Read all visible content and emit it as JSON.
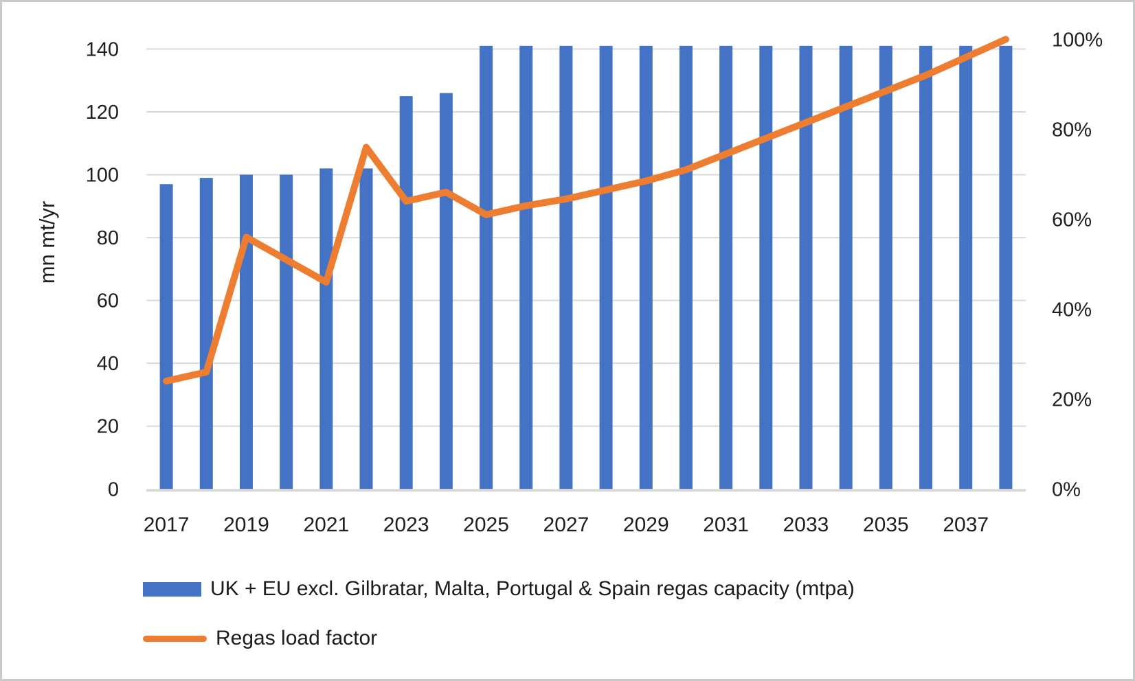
{
  "chart_data": {
    "type": "bar",
    "subtype": "bar+line dual-axis",
    "categories": [
      2017,
      2018,
      2019,
      2020,
      2021,
      2022,
      2023,
      2024,
      2025,
      2026,
      2027,
      2028,
      2029,
      2030,
      2031,
      2032,
      2033,
      2034,
      2035,
      2036,
      2037,
      2038
    ],
    "series": [
      {
        "name": "UK + EU excl. Gilbratar, Malta, Portugal & Spain regas capacity (mtpa)",
        "type": "bar",
        "axis": "left",
        "color": "#4472C4",
        "values": [
          97,
          99,
          100,
          100,
          102,
          102,
          125,
          126,
          141,
          141,
          141,
          141,
          141,
          141,
          141,
          141,
          141,
          141,
          141,
          141,
          141,
          141
        ]
      },
      {
        "name": "Regas load factor",
        "type": "line",
        "axis": "right",
        "color": "#ED7D31",
        "values_pct": [
          24,
          26,
          56,
          51,
          46,
          76,
          64,
          66,
          61,
          63,
          64.5,
          66.5,
          68.5,
          71,
          74.5,
          78,
          81.5,
          85,
          88.5,
          92,
          96,
          100
        ]
      }
    ],
    "left_axis": {
      "title": "mn mt/yr",
      "min": 0,
      "max": 143,
      "ticks": [
        0,
        20,
        40,
        60,
        80,
        100,
        120,
        140
      ]
    },
    "right_axis": {
      "min_pct": 0,
      "max_pct": 100,
      "ticks_pct": [
        0,
        20,
        40,
        60,
        80,
        100
      ],
      "tick_labels": [
        "0%",
        "20%",
        "40%",
        "60%",
        "80%",
        "100%"
      ]
    },
    "x_axis": {
      "tick_labels": [
        "2017",
        "2019",
        "2021",
        "2023",
        "2025",
        "2027",
        "2029",
        "2031",
        "2033",
        "2035",
        "2037"
      ]
    },
    "grid": "horizontal",
    "grid_color": "#D9D9D9",
    "axis_line_color": "#D9D9D9",
    "tick_text_color": "#1f1f1f",
    "legend_position": "bottom-left"
  }
}
